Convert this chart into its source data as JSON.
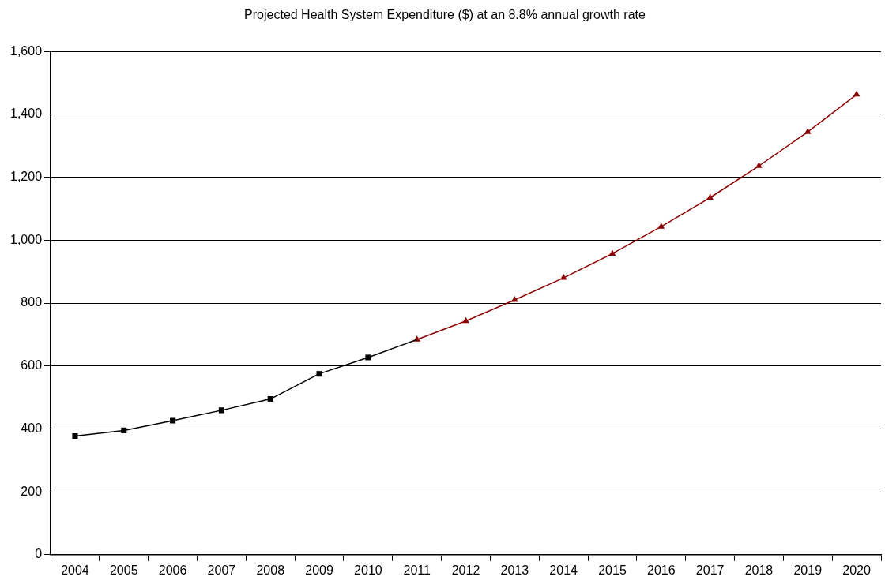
{
  "chart_data": {
    "type": "line",
    "title": "Projected Health System Expenditure ($) at an 8.8% annual growth rate",
    "categories": [
      "2004",
      "2005",
      "2006",
      "2007",
      "2008",
      "2009",
      "2010",
      "2011",
      "2012",
      "2013",
      "2014",
      "2015",
      "2016",
      "2017",
      "2018",
      "2019",
      "2020"
    ],
    "series": [
      {
        "color": "#000000",
        "marker": "square",
        "values": [
          377,
          395,
          426,
          459,
          495,
          575,
          627,
          684,
          null,
          null,
          null,
          null,
          null,
          null,
          null,
          null,
          null
        ]
      },
      {
        "color": "#8b0000",
        "marker": "triangle",
        "values": [
          null,
          null,
          null,
          null,
          null,
          null,
          null,
          684,
          743,
          810,
          880,
          957,
          1043,
          1135,
          1236,
          1344,
          1463
        ]
      }
    ],
    "ylim": [
      0,
      1600
    ],
    "yticks": [
      0,
      200,
      400,
      600,
      800,
      {
        "value": 1000,
        "label": "1,000"
      },
      {
        "value": 1200,
        "label": "1,200"
      },
      {
        "value": 1400,
        "label": "1,400"
      },
      {
        "value": 1600,
        "label": "1,600"
      }
    ],
    "grid": "y",
    "legend": false
  }
}
